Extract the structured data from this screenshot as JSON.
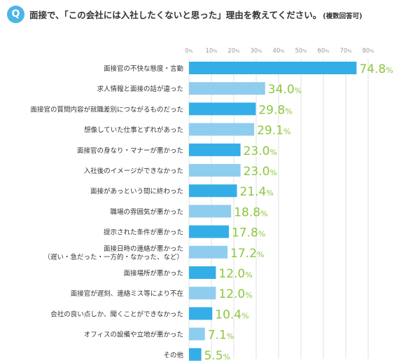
{
  "header": {
    "badge": "Q",
    "question": "面接で、「この会社には入社したくないと思った」理由を教えてください。",
    "note": "(複数回答可)"
  },
  "chart_data": {
    "type": "bar",
    "orientation": "horizontal",
    "xlim": [
      0,
      80
    ],
    "ticks": [
      0,
      10,
      20,
      30,
      40,
      50,
      60,
      70,
      80
    ],
    "tick_suffix": "%",
    "value_suffix": "%",
    "grid": true,
    "categories": [
      [
        "面接官の不快な態度・言動"
      ],
      [
        "求人情報と面接の話が違った"
      ],
      [
        "面接官の質問内容が就職差別につながるものだった"
      ],
      [
        "想像していた仕事とずれがあった"
      ],
      [
        "面接官の身なり・マナーが悪かった"
      ],
      [
        "入社後のイメージができなかった"
      ],
      [
        "面接があっという間に終わった"
      ],
      [
        "職場の雰囲気が悪かった"
      ],
      [
        "提示された条件が悪かった"
      ],
      [
        "面接日時の連絡が悪かった",
        "（遅い・急だった・一方的・なかった、など）"
      ],
      [
        "面接場所が悪かった"
      ],
      [
        "面接官が遅刻、連絡ミス等により不在"
      ],
      [
        "会社の良い点しか、聞くことができなかった"
      ],
      [
        "オフィスの設備や立地が悪かった"
      ],
      [
        "その他"
      ]
    ],
    "values": [
      74.8,
      34.0,
      29.8,
      29.1,
      23.0,
      23.0,
      21.4,
      18.8,
      17.8,
      17.2,
      12.0,
      12.0,
      10.4,
      7.1,
      5.5
    ],
    "colors": {
      "bar_dark": "#34aee6",
      "bar_light": "#8fcdee",
      "value_label": "#8cc63f",
      "grid": "#e2e2e2",
      "tick": "#999999"
    }
  }
}
